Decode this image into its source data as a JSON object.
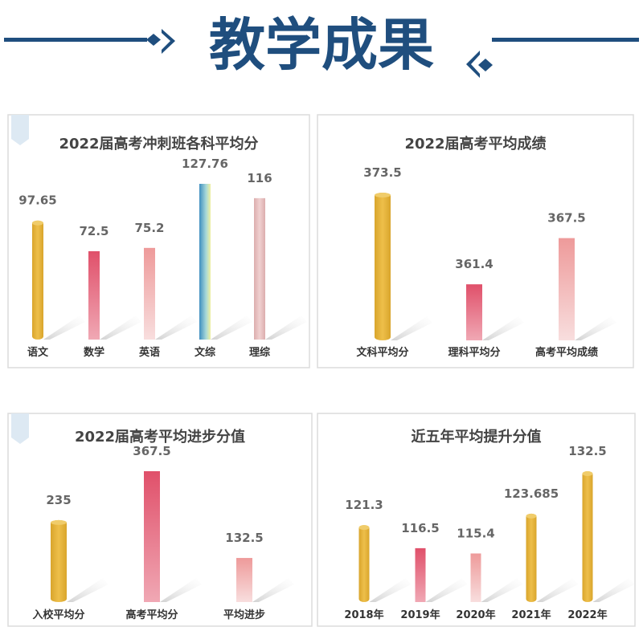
{
  "header": {
    "title": "教学成果",
    "color": "#1f4e7e"
  },
  "chart_data": [
    {
      "type": "bar",
      "title": "2022届高考冲刺班各科平均分",
      "categories": [
        "语文",
        "数学",
        "英语",
        "文综",
        "理综"
      ],
      "values": [
        97.65,
        72.5,
        75.2,
        127.76,
        116
      ],
      "labels": [
        "97.65",
        "72.5",
        "75.2",
        "127.76",
        "116"
      ],
      "colors": [
        "#e3b23c",
        "#e0506a",
        "#ee9a9a",
        "#3f9bc8",
        "#e3b8b8"
      ],
      "ylim": [
        0,
        140
      ],
      "grid": false
    },
    {
      "type": "bar",
      "title": "2022届高考平均成绩",
      "categories": [
        "文科平均分",
        "理科平均分",
        "高考平均成绩"
      ],
      "values": [
        373.5,
        361.4,
        367.5
      ],
      "labels": [
        "373.5",
        "361.4",
        "367.5"
      ],
      "colors": [
        "#e3b23c",
        "#e0506a",
        "#ee9a9a"
      ],
      "ylim": [
        354,
        376
      ],
      "grid": false
    },
    {
      "type": "bar",
      "title": "2022届高考平均进步分值",
      "categories": [
        "入校平均分",
        "高考平均分",
        "平均进步"
      ],
      "values": [
        235,
        367.5,
        132.5
      ],
      "labels": [
        "235",
        "367.5",
        "132.5"
      ],
      "colors": [
        "#e3b23c",
        "#e0506a",
        "#ee9a9a"
      ],
      "ylim": [
        13,
        400
      ],
      "grid": false
    },
    {
      "type": "bar",
      "title": "近五年平均提升分值",
      "categories": [
        "2018年",
        "2019年",
        "2020年",
        "2021年",
        "2022年"
      ],
      "values": [
        121.3,
        116.5,
        115.4,
        123.685,
        132.5
      ],
      "labels": [
        "121.3",
        "116.5",
        "115.4",
        "123.685",
        "132.5"
      ],
      "colors": [
        "#e3b23c",
        "#e0506a",
        "#ee9a9a",
        "#e3b23c",
        "#e3b23c"
      ],
      "ylim": [
        105.3,
        135
      ],
      "grid": false
    }
  ]
}
